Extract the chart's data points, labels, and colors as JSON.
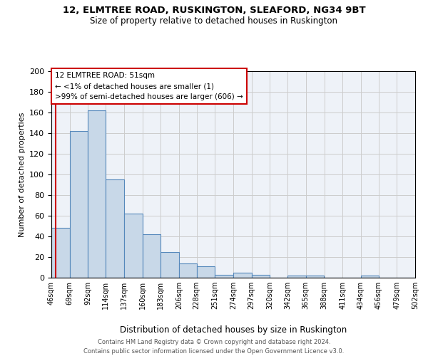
{
  "title1": "12, ELMTREE ROAD, RUSKINGTON, SLEAFORD, NG34 9BT",
  "title2": "Size of property relative to detached houses in Ruskington",
  "xlabel": "Distribution of detached houses by size in Ruskington",
  "ylabel": "Number of detached properties",
  "bin_edges": [
    46,
    69,
    92,
    114,
    137,
    160,
    183,
    206,
    228,
    251,
    274,
    297,
    320,
    342,
    365,
    388,
    411,
    434,
    456,
    479,
    502
  ],
  "bin_labels": [
    "46sqm",
    "69sqm",
    "92sqm",
    "114sqm",
    "137sqm",
    "160sqm",
    "183sqm",
    "206sqm",
    "228sqm",
    "251sqm",
    "274sqm",
    "297sqm",
    "320sqm",
    "342sqm",
    "365sqm",
    "388sqm",
    "411sqm",
    "434sqm",
    "456sqm",
    "479sqm",
    "502sqm"
  ],
  "bar_heights": [
    48,
    142,
    162,
    95,
    62,
    42,
    25,
    14,
    11,
    3,
    5,
    3,
    0,
    2,
    2,
    0,
    0,
    2,
    0,
    0
  ],
  "bar_color": "#c8d8e8",
  "bar_edge_color": "#5588bb",
  "vline_x": 51,
  "vline_color": "#cc0000",
  "annotation_text": "12 ELMTREE ROAD: 51sqm\n← <1% of detached houses are smaller (1)\n>99% of semi-detached houses are larger (606) →",
  "annotation_box_color": "#ffffff",
  "annotation_box_edge_color": "#cc0000",
  "ylim": [
    0,
    200
  ],
  "yticks": [
    0,
    20,
    40,
    60,
    80,
    100,
    120,
    140,
    160,
    180,
    200
  ],
  "grid_color": "#cccccc",
  "bg_color": "#eef2f8",
  "footer1": "Contains HM Land Registry data © Crown copyright and database right 2024.",
  "footer2": "Contains public sector information licensed under the Open Government Licence v3.0."
}
